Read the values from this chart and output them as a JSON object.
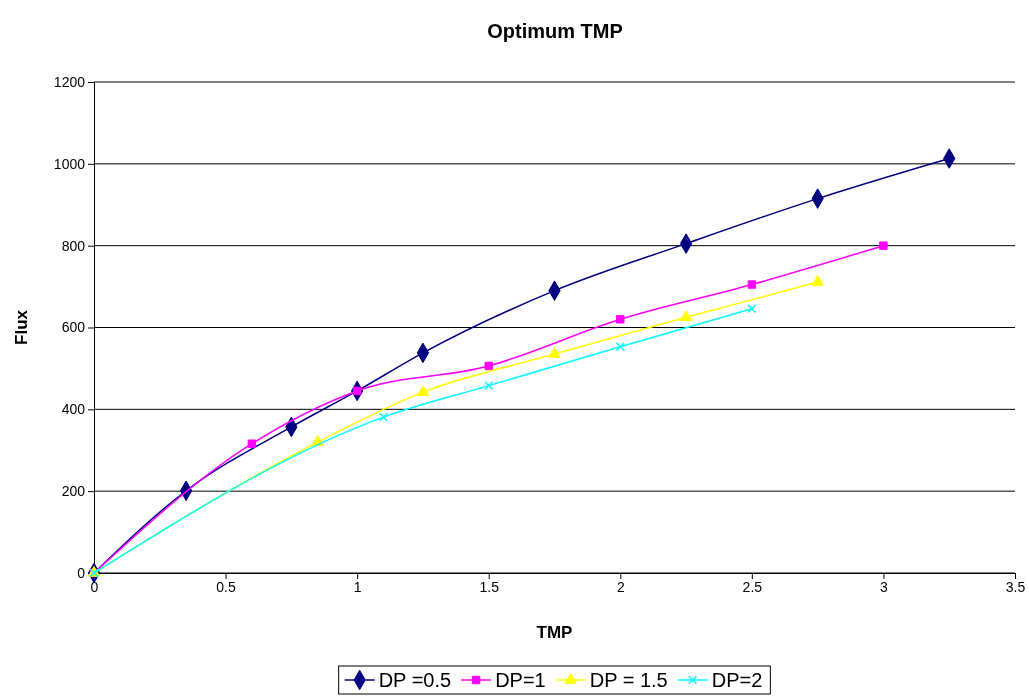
{
  "chart_data": {
    "type": "line",
    "title": "Optimum TMP",
    "xlabel": "TMP",
    "ylabel": "Flux",
    "xlim": [
      0,
      3.5
    ],
    "xticks": [
      0,
      0.5,
      1,
      1.5,
      2,
      2.5,
      3,
      3.5
    ],
    "ylim": [
      0,
      1200
    ],
    "yticks": [
      0,
      200,
      400,
      600,
      800,
      1000,
      1200
    ],
    "grid": "y",
    "legend": "bottom",
    "series": [
      {
        "name": "DP =0.5",
        "color": "#000080",
        "marker": "diamond",
        "x": [
          0,
          0.35,
          0.75,
          1,
          1.25,
          1.75,
          2.25,
          2.75,
          3.25
        ],
        "values": [
          0,
          201,
          357,
          445,
          538,
          690,
          805,
          915,
          1013
        ]
      },
      {
        "name": "DP=1",
        "color": "#ff00ff",
        "marker": "square",
        "x": [
          0,
          0.6,
          1,
          1.5,
          2,
          2.5,
          3
        ],
        "values": [
          0,
          316,
          445,
          506,
          620,
          705,
          800
        ]
      },
      {
        "name": "DP = 1.5",
        "color": "#ffff00",
        "marker": "triangle",
        "x": [
          0,
          0.85,
          1.25,
          1.75,
          2.25,
          2.75
        ],
        "values": [
          0,
          320,
          442,
          535,
          625,
          711
        ]
      },
      {
        "name": "DP=2",
        "color": "#00ffff",
        "marker": "cross",
        "x": [
          0,
          1.1,
          1.5,
          2,
          2.5
        ],
        "values": [
          0,
          381,
          458,
          553,
          646
        ]
      }
    ]
  }
}
